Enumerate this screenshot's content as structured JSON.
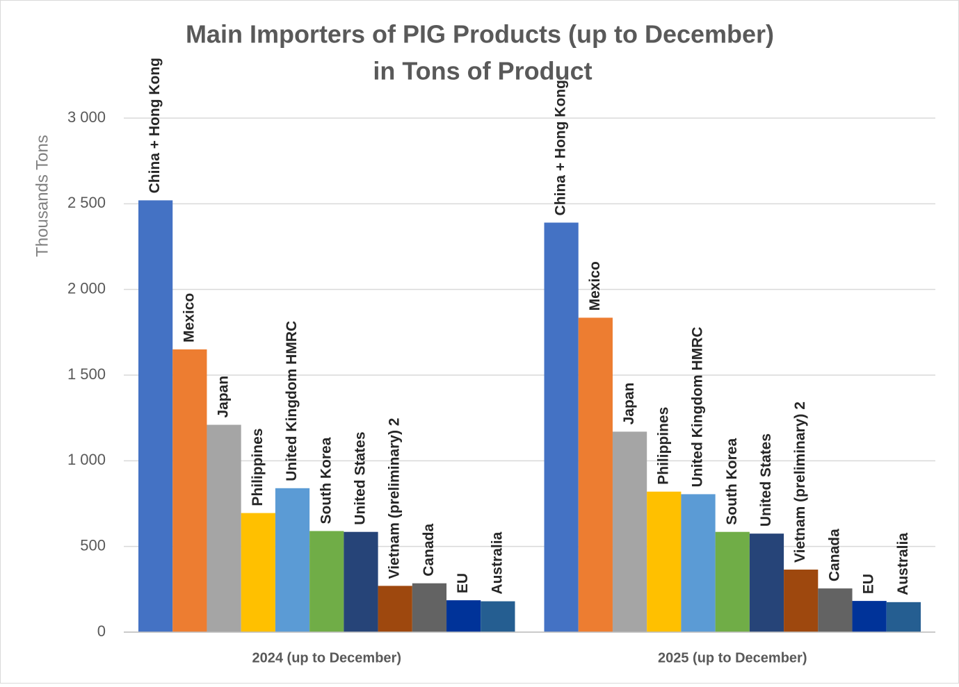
{
  "chart_data": {
    "type": "bar",
    "title": "Main Importers of PIG Products (up to December)",
    "subtitle": "in Tons of Product",
    "y_label": "Thousands Tons",
    "categories": [
      "2024 (up to December)",
      "2025 (up to December)"
    ],
    "series": [
      {
        "name": "China + Hong Kong",
        "color": "#4472c4",
        "values": [
          2520,
          2390
        ]
      },
      {
        "name": "Mexico",
        "color": "#ed7d31",
        "values": [
          1650,
          1835
        ]
      },
      {
        "name": "Japan",
        "color": "#a5a5a5",
        "values": [
          1210,
          1170
        ]
      },
      {
        "name": "Philippines",
        "color": "#ffc000",
        "values": [
          695,
          820
        ]
      },
      {
        "name": "United Kingdom HMRC",
        "color": "#5b9bd5",
        "values": [
          840,
          805
        ]
      },
      {
        "name": "South Korea",
        "color": "#70ad47",
        "values": [
          590,
          585
        ]
      },
      {
        "name": "United States",
        "color": "#264478",
        "values": [
          585,
          575
        ]
      },
      {
        "name": "Vietnam (preliminary) 2",
        "color": "#9e480e",
        "values": [
          270,
          365
        ]
      },
      {
        "name": "Canada",
        "color": "#636363",
        "values": [
          285,
          255
        ]
      },
      {
        "name": "EU",
        "color": "#003399",
        "values": [
          186,
          182
        ]
      },
      {
        "name": "Australia",
        "color": "#255e91",
        "values": [
          180,
          175
        ]
      }
    ],
    "ylim": [
      0,
      3000
    ],
    "yticks": [
      0,
      500,
      {
        "value": 1000,
        "label": "1 000"
      },
      {
        "value": 1500,
        "label": "1 500"
      },
      {
        "value": 2000,
        "label": "2 000"
      },
      {
        "value": 2500,
        "label": "2 500"
      },
      {
        "value": 3000,
        "label": "3 000"
      }
    ],
    "grid": true
  }
}
